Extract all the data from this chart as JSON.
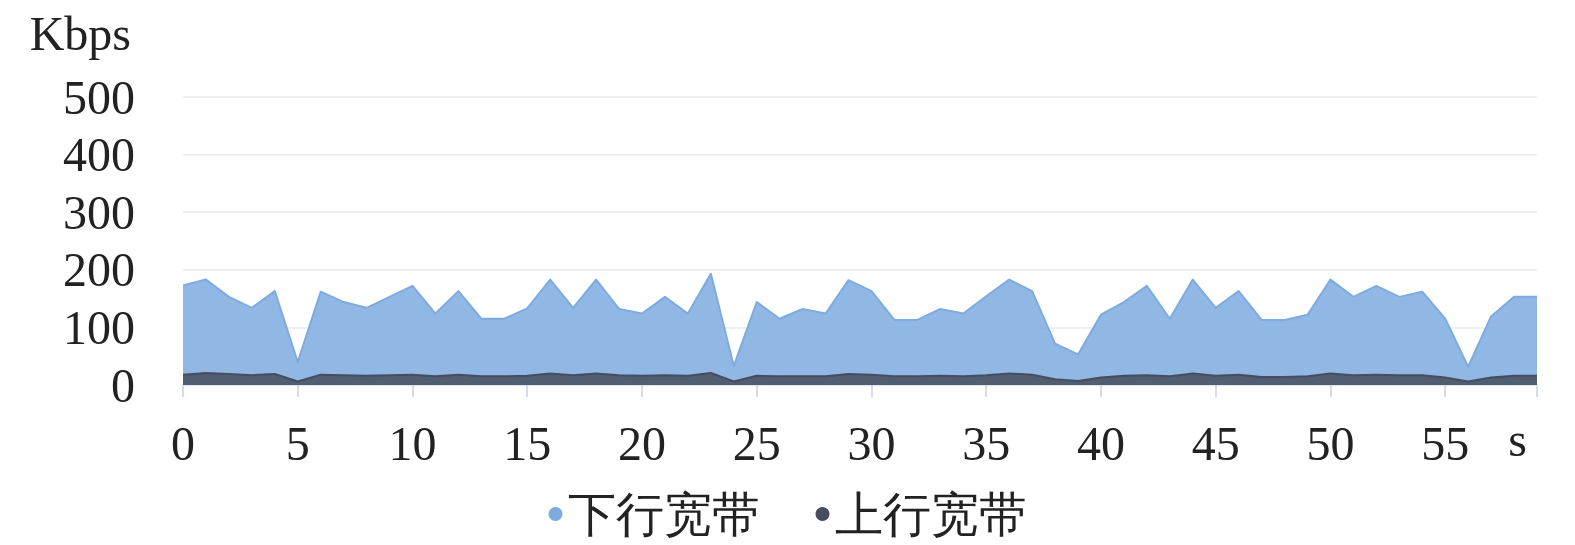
{
  "chart_data": {
    "type": "area",
    "ylabel": "Kbps",
    "xlabel": "s",
    "x": [
      0,
      1,
      2,
      3,
      4,
      5,
      6,
      7,
      8,
      9,
      10,
      11,
      12,
      13,
      14,
      15,
      16,
      17,
      18,
      19,
      20,
      21,
      22,
      23,
      24,
      25,
      26,
      27,
      28,
      29,
      30,
      31,
      32,
      33,
      34,
      35,
      36,
      37,
      38,
      39,
      40,
      41,
      42,
      43,
      44,
      45,
      46,
      47,
      48,
      49,
      50,
      51,
      52,
      53,
      54,
      55,
      56,
      57,
      58,
      59
    ],
    "series": [
      {
        "name": "下行宽带",
        "color": "#7eabdf",
        "values": [
          173,
          183,
          153,
          134,
          163,
          40,
          162,
          144,
          134,
          153,
          172,
          124,
          163,
          115,
          115,
          133,
          183,
          134,
          183,
          132,
          124,
          153,
          124,
          193,
          33,
          144,
          115,
          132,
          124,
          182,
          163,
          113,
          113,
          132,
          124,
          154,
          183,
          163,
          72,
          53,
          122,
          144,
          172,
          115,
          183,
          134,
          163,
          113,
          113,
          122,
          183,
          153,
          172,
          153,
          162,
          115,
          32,
          119,
          153,
          153
        ]
      },
      {
        "name": "上行宽带",
        "color": "#474d5e",
        "values": [
          18,
          21,
          19,
          17,
          19,
          6,
          18,
          17,
          16,
          17,
          18,
          15,
          18,
          15,
          15,
          16,
          20,
          17,
          20,
          17,
          16,
          17,
          16,
          21,
          6,
          16,
          15,
          15,
          15,
          19,
          18,
          15,
          15,
          16,
          15,
          17,
          20,
          18,
          10,
          7,
          13,
          16,
          17,
          15,
          20,
          16,
          18,
          14,
          14,
          15,
          20,
          17,
          18,
          17,
          17,
          13,
          6,
          13,
          16,
          16
        ]
      }
    ],
    "xlim": [
      0,
      59
    ],
    "xticks": [
      0,
      5,
      10,
      15,
      20,
      25,
      30,
      35,
      40,
      45,
      50,
      55,
      {
        "value": 59,
        "label": null
      }
    ],
    "ylim": [
      0,
      500
    ],
    "yticks": [
      0,
      100,
      200,
      300,
      400,
      500
    ],
    "grid": "y",
    "legend": "bottom"
  }
}
